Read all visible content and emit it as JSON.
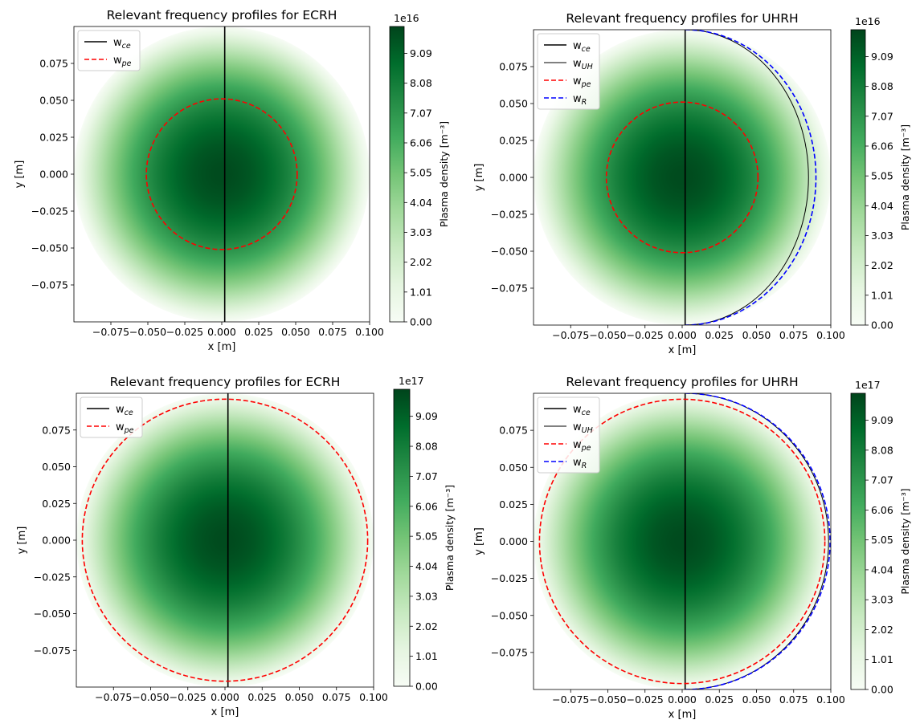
{
  "chart_data": [
    {
      "type": "heatmap",
      "title": "Relevant frequency profiles for ECRH",
      "xlabel": "x [m]",
      "ylabel": "y [m]",
      "xlim": [
        -0.1,
        0.1
      ],
      "ylim": [
        -0.1,
        0.1
      ],
      "x_ticks": [
        -0.075,
        -0.05,
        -0.025,
        0.0,
        0.025,
        0.05,
        0.075,
        0.1
      ],
      "x_tick_labels": [
        "−0.075",
        "−0.050",
        "−0.025",
        "0.000",
        "0.025",
        "0.050",
        "0.075",
        "0.100"
      ],
      "y_ticks": [
        -0.075,
        -0.05,
        -0.025,
        0.0,
        0.025,
        0.05,
        0.075
      ],
      "y_tick_labels": [
        "−0.075",
        "−0.050",
        "−0.025",
        "0.000",
        "0.025",
        "0.050",
        "0.075"
      ],
      "legend_position": "upper-left",
      "colormap": "Greens",
      "plasma": {
        "radius": 0.1,
        "peak_density": 1e+17
      },
      "colorbar": {
        "label": "Plasma density [m⁻³]",
        "exponent": "1e16",
        "ticks": [
          0.0,
          1.01,
          2.02,
          3.03,
          4.04,
          5.05,
          6.06,
          7.07,
          8.08,
          9.09
        ],
        "tick_labels": [
          "0.00",
          "1.01",
          "2.02",
          "3.03",
          "4.04",
          "5.05",
          "6.06",
          "7.07",
          "8.08",
          "9.09"
        ],
        "range": [
          0,
          10
        ]
      },
      "series": [
        {
          "name": "w",
          "sub": "ce",
          "kind": "vline",
          "x": 0.002,
          "color": "#000000",
          "dashed": false,
          "width": 1.6
        },
        {
          "name": "w",
          "sub": "pe",
          "kind": "circle",
          "radius": 0.051,
          "color": "#ff0000",
          "dashed": true,
          "width": 1.6
        }
      ]
    },
    {
      "type": "heatmap",
      "title": "Relevant frequency profiles for UHRH",
      "xlabel": "x [m]",
      "ylabel": "y [m]",
      "xlim": [
        -0.1,
        0.1
      ],
      "ylim": [
        -0.1,
        0.1
      ],
      "x_ticks": [
        -0.075,
        -0.05,
        -0.025,
        0.0,
        0.025,
        0.05,
        0.075,
        0.1
      ],
      "x_tick_labels": [
        "−0.075",
        "−0.050",
        "−0.025",
        "0.000",
        "0.025",
        "0.050",
        "0.075",
        "0.100"
      ],
      "y_ticks": [
        -0.075,
        -0.05,
        -0.025,
        0.0,
        0.025,
        0.05,
        0.075
      ],
      "y_tick_labels": [
        "−0.075",
        "−0.050",
        "−0.025",
        "0.000",
        "0.025",
        "0.050",
        "0.075"
      ],
      "legend_position": "upper-left",
      "colormap": "Greens",
      "plasma": {
        "radius": 0.1,
        "peak_density": 1e+17
      },
      "colorbar": {
        "label": "Plasma density [m⁻³]",
        "exponent": "1e16",
        "ticks": [
          0.0,
          1.01,
          2.02,
          3.03,
          4.04,
          5.05,
          6.06,
          7.07,
          8.08,
          9.09
        ],
        "tick_labels": [
          "0.00",
          "1.01",
          "2.02",
          "3.03",
          "4.04",
          "5.05",
          "6.06",
          "7.07",
          "8.08",
          "9.09"
        ],
        "range": [
          0,
          10
        ]
      },
      "series": [
        {
          "name": "w",
          "sub": "ce",
          "kind": "vline",
          "x": 0.002,
          "color": "#000000",
          "dashed": false,
          "width": 1.6
        },
        {
          "name": "w",
          "sub": "UH",
          "kind": "arc",
          "x_center": 0.002,
          "x_right": 0.085,
          "color": "#000000",
          "dashed": false,
          "width": 1.0
        },
        {
          "name": "w",
          "sub": "pe",
          "kind": "circle",
          "radius": 0.051,
          "color": "#ff0000",
          "dashed": true,
          "width": 1.6
        },
        {
          "name": "w",
          "sub": "R",
          "kind": "arc",
          "x_center": 0.002,
          "x_right": 0.09,
          "color": "#0000ff",
          "dashed": true,
          "width": 1.6
        }
      ]
    },
    {
      "type": "heatmap",
      "title": "Relevant frequency profiles for ECRH",
      "xlabel": "x [m]",
      "ylabel": "y [m]",
      "xlim": [
        -0.1,
        0.1
      ],
      "ylim": [
        -0.1,
        0.1
      ],
      "x_ticks": [
        -0.075,
        -0.05,
        -0.025,
        0.0,
        0.025,
        0.05,
        0.075,
        0.1
      ],
      "x_tick_labels": [
        "−0.075",
        "−0.050",
        "−0.025",
        "0.000",
        "0.025",
        "0.050",
        "0.075",
        "0.100"
      ],
      "y_ticks": [
        -0.075,
        -0.05,
        -0.025,
        0.0,
        0.025,
        0.05,
        0.075
      ],
      "y_tick_labels": [
        "−0.075",
        "−0.050",
        "−0.025",
        "0.000",
        "0.025",
        "0.050",
        "0.075"
      ],
      "legend_position": "upper-left",
      "colormap": "Greens",
      "plasma": {
        "radius": 0.1,
        "peak_density": 1e+18
      },
      "colorbar": {
        "label": "Plasma density [m⁻³]",
        "exponent": "1e17",
        "ticks": [
          0.0,
          1.01,
          2.02,
          3.03,
          4.04,
          5.05,
          6.06,
          7.07,
          8.08,
          9.09
        ],
        "tick_labels": [
          "0.00",
          "1.01",
          "2.02",
          "3.03",
          "4.04",
          "5.05",
          "6.06",
          "7.07",
          "8.08",
          "9.09"
        ],
        "range": [
          0,
          10
        ]
      },
      "series": [
        {
          "name": "w",
          "sub": "ce",
          "kind": "vline",
          "x": 0.002,
          "color": "#000000",
          "dashed": false,
          "width": 1.6
        },
        {
          "name": "w",
          "sub": "pe",
          "kind": "circle",
          "radius": 0.096,
          "color": "#ff0000",
          "dashed": true,
          "width": 1.6
        }
      ]
    },
    {
      "type": "heatmap",
      "title": "Relevant frequency profiles for UHRH",
      "xlabel": "x [m]",
      "ylabel": "y [m]",
      "xlim": [
        -0.1,
        0.1
      ],
      "ylim": [
        -0.1,
        0.1
      ],
      "x_ticks": [
        -0.075,
        -0.05,
        -0.025,
        0.0,
        0.025,
        0.05,
        0.075,
        0.1
      ],
      "x_tick_labels": [
        "−0.075",
        "−0.050",
        "−0.025",
        "0.000",
        "0.025",
        "0.050",
        "0.075",
        "0.100"
      ],
      "y_ticks": [
        -0.075,
        -0.05,
        -0.025,
        0.0,
        0.025,
        0.05,
        0.075
      ],
      "y_tick_labels": [
        "−0.075",
        "−0.050",
        "−0.025",
        "0.000",
        "0.025",
        "0.050",
        "0.075"
      ],
      "legend_position": "upper-left",
      "colormap": "Greens",
      "plasma": {
        "radius": 0.1,
        "peak_density": 1e+18
      },
      "colorbar": {
        "label": "Plasma density [m⁻³]",
        "exponent": "1e17",
        "ticks": [
          0.0,
          1.01,
          2.02,
          3.03,
          4.04,
          5.05,
          6.06,
          7.07,
          8.08,
          9.09
        ],
        "tick_labels": [
          "0.00",
          "1.01",
          "2.02",
          "3.03",
          "4.04",
          "5.05",
          "6.06",
          "7.07",
          "8.08",
          "9.09"
        ],
        "range": [
          0,
          10
        ]
      },
      "series": [
        {
          "name": "w",
          "sub": "ce",
          "kind": "vline",
          "x": 0.002,
          "color": "#000000",
          "dashed": false,
          "width": 1.6
        },
        {
          "name": "w",
          "sub": "UH",
          "kind": "arc",
          "x_center": 0.002,
          "x_right": 0.0985,
          "color": "#000000",
          "dashed": false,
          "width": 1.0
        },
        {
          "name": "w",
          "sub": "pe",
          "kind": "circle",
          "radius": 0.096,
          "color": "#ff0000",
          "dashed": true,
          "width": 1.6
        },
        {
          "name": "w",
          "sub": "R",
          "kind": "arc",
          "x_center": 0.002,
          "x_right": 0.0995,
          "color": "#0000ff",
          "dashed": true,
          "width": 1.6
        }
      ]
    }
  ]
}
